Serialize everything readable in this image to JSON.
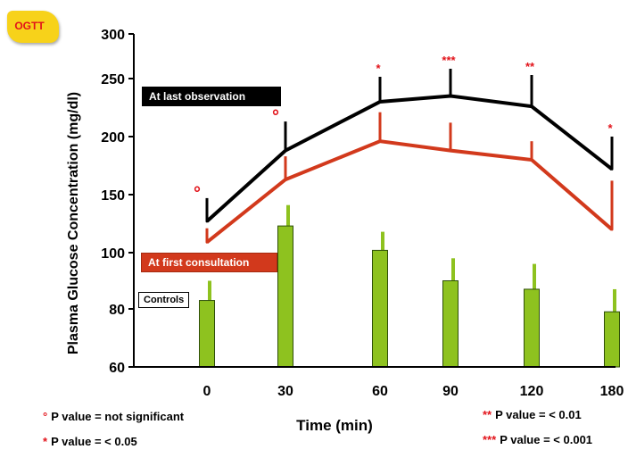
{
  "badge": {
    "label": "OGTT"
  },
  "chart_data": {
    "type": "line",
    "title": "",
    "xlabel": "Time (min)",
    "ylabel": "Plasma Glucose Concentration (mg/dl)",
    "categories": [
      "0",
      "30",
      "60",
      "90",
      "120",
      "180"
    ],
    "y_ticks": [
      "60",
      "80",
      "100",
      "150",
      "200",
      "250",
      "300"
    ],
    "ylim": [
      60,
      300
    ],
    "series": [
      {
        "name": "At last observation",
        "type": "line",
        "color": "#000000",
        "values": [
          127,
          188,
          230,
          235,
          226,
          172
        ],
        "error": [
          20,
          25,
          22,
          26,
          28,
          28
        ],
        "markers": [
          "°",
          "°",
          "*",
          "***",
          "**",
          "*"
        ]
      },
      {
        "name": "At first consultation",
        "type": "line",
        "color": "#d2391c",
        "values": [
          109,
          163,
          196,
          188,
          180,
          120
        ],
        "error": [
          12,
          20,
          25,
          24,
          16,
          42
        ]
      },
      {
        "name": "Controls",
        "type": "bar",
        "color": "#8ec21f",
        "values": [
          83,
          123,
          102,
          90,
          87,
          79
        ],
        "error": [
          7,
          18,
          16,
          8,
          9,
          8
        ]
      }
    ]
  },
  "notes": {
    "ns": {
      "symbol": "°",
      "text": "P value = not significant"
    },
    "p05": {
      "symbol": "*",
      "text": "P value = < 0.05"
    },
    "p01": {
      "symbol": "**",
      "text": "P value = < 0.01"
    },
    "p001": {
      "symbol": "***",
      "text": "P value = < 0.001"
    }
  },
  "colors": {
    "last": "#000000",
    "first": "#d2391c",
    "controls": "#8ec21f",
    "marker": "#e2131a",
    "badge": "#f7d21a"
  }
}
